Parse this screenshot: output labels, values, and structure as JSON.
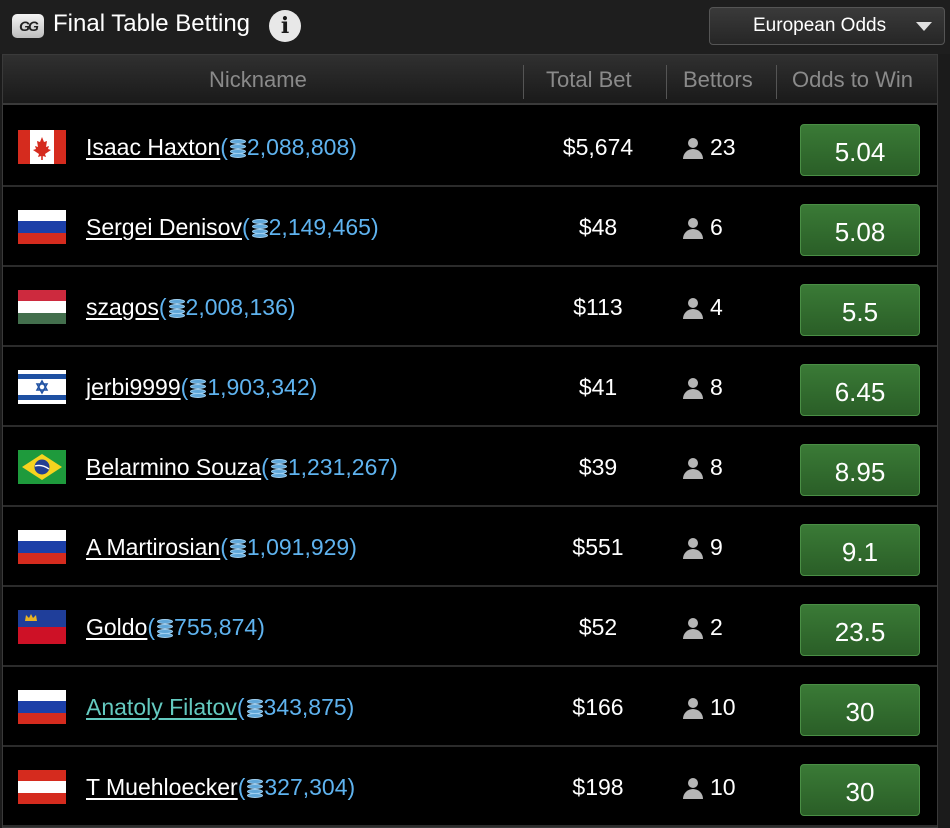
{
  "header": {
    "logo_text": "GG",
    "title": "Final Table Betting",
    "info_icon": "i",
    "odds_format": "European Odds"
  },
  "columns": {
    "nickname": "Nickname",
    "total_bet": "Total Bet",
    "bettors": "Bettors",
    "odds": "Odds to Win"
  },
  "rows": [
    {
      "flag": "canada",
      "name": "Isaac Haxton",
      "chips": "2,088,808",
      "total_bet": "$5,674",
      "bettors": "23",
      "odds": "5.04"
    },
    {
      "flag": "russia",
      "name": "Sergei Denisov",
      "chips": "2,149,465",
      "total_bet": "$48",
      "bettors": "6",
      "odds": "5.08"
    },
    {
      "flag": "hungary",
      "name": "szagos",
      "chips": "2,008,136",
      "total_bet": "$113",
      "bettors": "4",
      "odds": "5.5"
    },
    {
      "flag": "israel",
      "name": "jerbi9999",
      "chips": "1,903,342",
      "total_bet": "$41",
      "bettors": "8",
      "odds": "6.45"
    },
    {
      "flag": "brazil",
      "name": "Belarmino Souza",
      "chips": "1,231,267",
      "total_bet": "$39",
      "bettors": "8",
      "odds": "8.95"
    },
    {
      "flag": "russia",
      "name": "A Martirosian",
      "chips": "1,091,929",
      "total_bet": "$551",
      "bettors": "9",
      "odds": "9.1"
    },
    {
      "flag": "liechtenstein",
      "name": "Goldo",
      "chips": "755,874",
      "total_bet": "$52",
      "bettors": "2",
      "odds": "23.5"
    },
    {
      "flag": "russia",
      "name": "Anatoly Filatov",
      "chips": "343,875",
      "total_bet": "$166",
      "bettors": "10",
      "odds": "30",
      "highlighted": true
    },
    {
      "flag": "austria",
      "name": "T Muehloecker",
      "chips": "327,304",
      "total_bet": "$198",
      "bettors": "10",
      "odds": "30"
    }
  ]
}
